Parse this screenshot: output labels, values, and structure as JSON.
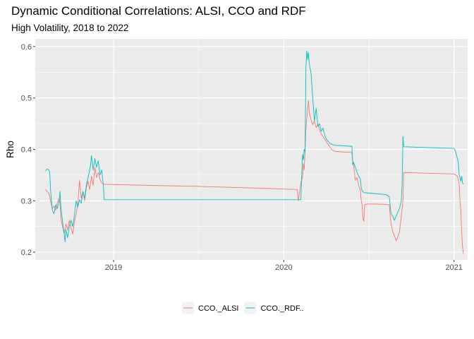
{
  "chart_data": {
    "type": "line",
    "title": "Dynamic Conditional Correlations: ALSI, CCO and RDF",
    "subtitle": "High Volatility, 2018 to 2022",
    "xlabel": "",
    "ylabel": "Rho",
    "xlim": [
      2018.54,
      2021.08
    ],
    "ylim": [
      0.185,
      0.615
    ],
    "x_ticks": [
      2019,
      2020,
      2021
    ],
    "x_tick_labels": [
      "2019",
      "2020",
      "2021"
    ],
    "y_ticks": [
      0.2,
      0.3,
      0.4,
      0.5,
      0.6
    ],
    "y_tick_labels": [
      "0.2",
      "0.3",
      "0.4",
      "0.5",
      "0.6"
    ],
    "grid": true,
    "legend_position": "bottom",
    "series": [
      {
        "name": "CCO._ALSI",
        "color": "#F8766D",
        "points": [
          [
            2018.6,
            0.322
          ],
          [
            2018.61,
            0.318
          ],
          [
            2018.62,
            0.315
          ],
          [
            2018.63,
            0.3
          ],
          [
            2018.64,
            0.285
          ],
          [
            2018.65,
            0.29
          ],
          [
            2018.66,
            0.282
          ],
          [
            2018.67,
            0.296
          ],
          [
            2018.68,
            0.305
          ],
          [
            2018.685,
            0.296
          ],
          [
            2018.69,
            0.268
          ],
          [
            2018.7,
            0.25
          ],
          [
            2018.71,
            0.236
          ],
          [
            2018.72,
            0.255
          ],
          [
            2018.73,
            0.243
          ],
          [
            2018.74,
            0.262
          ],
          [
            2018.75,
            0.248
          ],
          [
            2018.76,
            0.235
          ],
          [
            2018.77,
            0.258
          ],
          [
            2018.78,
            0.275
          ],
          [
            2018.79,
            0.292
          ],
          [
            2018.8,
            0.34
          ],
          [
            2018.81,
            0.305
          ],
          [
            2018.82,
            0.318
          ],
          [
            2018.83,
            0.3
          ],
          [
            2018.84,
            0.325
          ],
          [
            2018.85,
            0.338
          ],
          [
            2018.86,
            0.322
          ],
          [
            2018.87,
            0.348
          ],
          [
            2018.88,
            0.33
          ],
          [
            2018.89,
            0.365
          ],
          [
            2018.9,
            0.345
          ],
          [
            2018.91,
            0.355
          ],
          [
            2018.92,
            0.342
          ],
          [
            2018.93,
            0.335
          ],
          [
            2018.94,
            0.332
          ],
          [
            2018.95,
            0.332
          ],
          [
            2019.2,
            0.33
          ],
          [
            2019.5,
            0.328
          ],
          [
            2019.8,
            0.325
          ],
          [
            2020.08,
            0.322
          ],
          [
            2020.085,
            0.3
          ],
          [
            2020.09,
            0.31
          ],
          [
            2020.1,
            0.335
          ],
          [
            2020.11,
            0.345
          ],
          [
            2020.115,
            0.372
          ],
          [
            2020.12,
            0.36
          ],
          [
            2020.13,
            0.44
          ],
          [
            2020.14,
            0.48
          ],
          [
            2020.145,
            0.495
          ],
          [
            2020.15,
            0.47
          ],
          [
            2020.16,
            0.458
          ],
          [
            2020.17,
            0.448
          ],
          [
            2020.18,
            0.455
          ],
          [
            2020.19,
            0.442
          ],
          [
            2020.2,
            0.45
          ],
          [
            2020.21,
            0.438
          ],
          [
            2020.22,
            0.43
          ],
          [
            2020.23,
            0.425
          ],
          [
            2020.24,
            0.42
          ],
          [
            2020.25,
            0.415
          ],
          [
            2020.26,
            0.41
          ],
          [
            2020.27,
            0.405
          ],
          [
            2020.28,
            0.4
          ],
          [
            2020.29,
            0.398
          ],
          [
            2020.3,
            0.396
          ],
          [
            2020.4,
            0.394
          ],
          [
            2020.405,
            0.375
          ],
          [
            2020.41,
            0.37
          ],
          [
            2020.42,
            0.34
          ],
          [
            2020.43,
            0.345
          ],
          [
            2020.44,
            0.33
          ],
          [
            2020.45,
            0.32
          ],
          [
            2020.455,
            0.3
          ],
          [
            2020.46,
            0.292
          ],
          [
            2020.465,
            0.265
          ],
          [
            2020.47,
            0.26
          ],
          [
            2020.475,
            0.292
          ],
          [
            2020.48,
            0.293
          ],
          [
            2020.5,
            0.294
          ],
          [
            2020.6,
            0.293
          ],
          [
            2020.62,
            0.292
          ],
          [
            2020.625,
            0.27
          ],
          [
            2020.63,
            0.255
          ],
          [
            2020.64,
            0.24
          ],
          [
            2020.65,
            0.232
          ],
          [
            2020.66,
            0.222
          ],
          [
            2020.67,
            0.23
          ],
          [
            2020.68,
            0.24
          ],
          [
            2020.69,
            0.27
          ],
          [
            2020.7,
            0.3
          ],
          [
            2020.705,
            0.355
          ],
          [
            2020.71,
            0.355
          ],
          [
            2020.8,
            0.354
          ],
          [
            2020.9,
            0.353
          ],
          [
            2021.0,
            0.352
          ],
          [
            2021.01,
            0.35
          ],
          [
            2021.02,
            0.348
          ],
          [
            2021.025,
            0.34
          ],
          [
            2021.03,
            0.335
          ],
          [
            2021.035,
            0.3
          ],
          [
            2021.04,
            0.28
          ],
          [
            2021.045,
            0.24
          ],
          [
            2021.05,
            0.21
          ],
          [
            2021.055,
            0.197
          ]
        ]
      },
      {
        "name": "CCO._RDF..",
        "color": "#00BFC4",
        "points": [
          [
            2018.6,
            0.358
          ],
          [
            2018.61,
            0.362
          ],
          [
            2018.62,
            0.36
          ],
          [
            2018.625,
            0.355
          ],
          [
            2018.63,
            0.32
          ],
          [
            2018.64,
            0.282
          ],
          [
            2018.65,
            0.275
          ],
          [
            2018.66,
            0.292
          ],
          [
            2018.67,
            0.285
          ],
          [
            2018.68,
            0.3
          ],
          [
            2018.685,
            0.318
          ],
          [
            2018.69,
            0.29
          ],
          [
            2018.7,
            0.26
          ],
          [
            2018.71,
            0.236
          ],
          [
            2018.715,
            0.22
          ],
          [
            2018.72,
            0.244
          ],
          [
            2018.73,
            0.228
          ],
          [
            2018.74,
            0.25
          ],
          [
            2018.75,
            0.262
          ],
          [
            2018.76,
            0.25
          ],
          [
            2018.77,
            0.272
          ],
          [
            2018.78,
            0.3
          ],
          [
            2018.79,
            0.288
          ],
          [
            2018.8,
            0.302
          ],
          [
            2018.81,
            0.295
          ],
          [
            2018.82,
            0.318
          ],
          [
            2018.83,
            0.305
          ],
          [
            2018.84,
            0.33
          ],
          [
            2018.85,
            0.345
          ],
          [
            2018.86,
            0.36
          ],
          [
            2018.865,
            0.37
          ],
          [
            2018.87,
            0.388
          ],
          [
            2018.88,
            0.36
          ],
          [
            2018.89,
            0.382
          ],
          [
            2018.9,
            0.365
          ],
          [
            2018.91,
            0.378
          ],
          [
            2018.92,
            0.35
          ],
          [
            2018.93,
            0.36
          ],
          [
            2018.94,
            0.33
          ],
          [
            2018.945,
            0.302
          ],
          [
            2019.2,
            0.302
          ],
          [
            2019.5,
            0.302
          ],
          [
            2019.8,
            0.302
          ],
          [
            2020.1,
            0.302
          ],
          [
            2020.105,
            0.345
          ],
          [
            2020.11,
            0.39
          ],
          [
            2020.115,
            0.38
          ],
          [
            2020.12,
            0.4
          ],
          [
            2020.125,
            0.395
          ],
          [
            2020.13,
            0.56
          ],
          [
            2020.135,
            0.592
          ],
          [
            2020.14,
            0.575
          ],
          [
            2020.145,
            0.588
          ],
          [
            2020.15,
            0.565
          ],
          [
            2020.16,
            0.548
          ],
          [
            2020.17,
            0.5
          ],
          [
            2020.18,
            0.455
          ],
          [
            2020.19,
            0.48
          ],
          [
            2020.2,
            0.445
          ],
          [
            2020.21,
            0.45
          ],
          [
            2020.22,
            0.435
          ],
          [
            2020.23,
            0.442
          ],
          [
            2020.24,
            0.428
          ],
          [
            2020.25,
            0.42
          ],
          [
            2020.26,
            0.416
          ],
          [
            2020.27,
            0.412
          ],
          [
            2020.28,
            0.41
          ],
          [
            2020.3,
            0.408
          ],
          [
            2020.4,
            0.406
          ],
          [
            2020.405,
            0.37
          ],
          [
            2020.41,
            0.375
          ],
          [
            2020.42,
            0.365
          ],
          [
            2020.43,
            0.355
          ],
          [
            2020.44,
            0.348
          ],
          [
            2020.45,
            0.342
          ],
          [
            2020.455,
            0.325
          ],
          [
            2020.46,
            0.32
          ],
          [
            2020.465,
            0.318
          ],
          [
            2020.47,
            0.316
          ],
          [
            2020.5,
            0.315
          ],
          [
            2020.6,
            0.312
          ],
          [
            2020.62,
            0.308
          ],
          [
            2020.625,
            0.29
          ],
          [
            2020.63,
            0.275
          ],
          [
            2020.64,
            0.27
          ],
          [
            2020.65,
            0.262
          ],
          [
            2020.66,
            0.27
          ],
          [
            2020.67,
            0.278
          ],
          [
            2020.68,
            0.285
          ],
          [
            2020.69,
            0.3
          ],
          [
            2020.695,
            0.33
          ],
          [
            2020.7,
            0.425
          ],
          [
            2020.705,
            0.405
          ],
          [
            2020.8,
            0.404
          ],
          [
            2020.9,
            0.403
          ],
          [
            2021.0,
            0.402
          ],
          [
            2021.01,
            0.395
          ],
          [
            2021.015,
            0.388
          ],
          [
            2021.02,
            0.382
          ],
          [
            2021.025,
            0.375
          ],
          [
            2021.03,
            0.35
          ],
          [
            2021.035,
            0.345
          ],
          [
            2021.04,
            0.338
          ],
          [
            2021.045,
            0.348
          ],
          [
            2021.05,
            0.335
          ],
          [
            2021.055,
            0.332
          ]
        ]
      }
    ]
  }
}
